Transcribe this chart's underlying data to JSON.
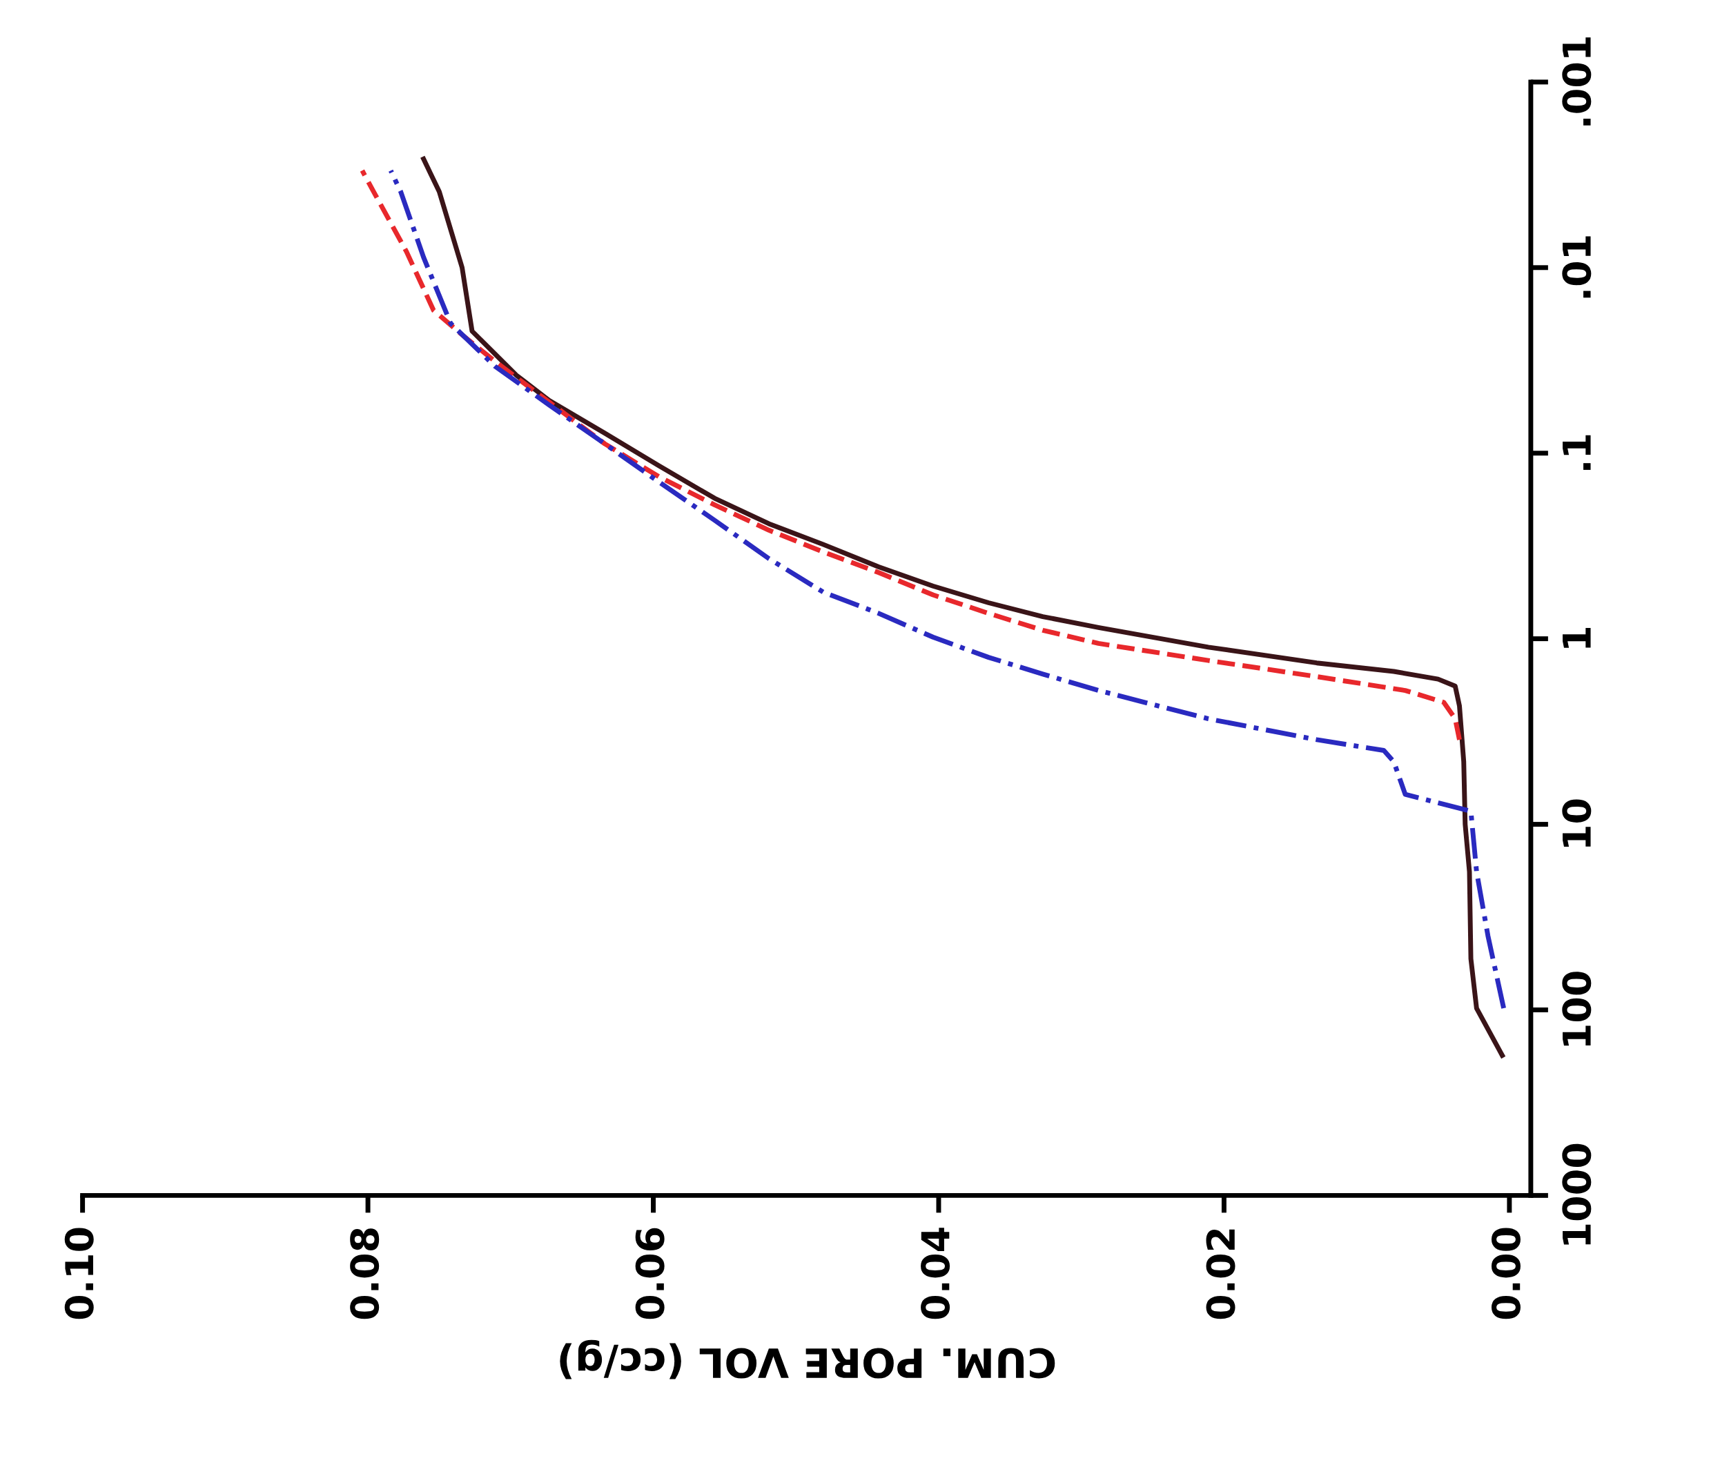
{
  "chart_data": {
    "type": "line",
    "xlabel": "CUM. PORE VOL (cc/g)",
    "log": "y",
    "grid": false,
    "legend": false,
    "marker": "none",
    "xlim": [
      0.1,
      -0.0015
    ],
    "xticks": [
      {
        "value": 0.1,
        "label": "0.10"
      },
      {
        "value": 0.08,
        "label": "0.08"
      },
      {
        "value": 0.06,
        "label": "0.06"
      },
      {
        "value": 0.04,
        "label": "0.04"
      },
      {
        "value": 0.02,
        "label": "0.02"
      },
      {
        "value": 0.0,
        "label": "0.00"
      }
    ],
    "ylim": [
      1000,
      0.001
    ],
    "yticks": [
      1000,
      100,
      10,
      1,
      {
        "value": 0.1,
        "label": ".1"
      },
      {
        "value": 0.01,
        "label": ".01"
      },
      {
        "value": 0.001,
        "label": ".001"
      }
    ],
    "series": [
      {
        "color": "#3a1418",
        "line_style": "solid",
        "x": [
          0.0005,
          0.0023,
          0.0027,
          0.0028,
          0.0031,
          0.0032,
          0.0035,
          0.0038,
          0.005,
          0.0081,
          0.0135,
          0.0211,
          0.0288,
          0.0327,
          0.0365,
          0.0404,
          0.0442,
          0.0481,
          0.0519,
          0.0557,
          0.0596,
          0.0634,
          0.0673,
          0.0696,
          0.0727,
          0.0734,
          0.075,
          0.0761
        ],
        "values": [
          176,
          98,
          53,
          18,
          10,
          4.6,
          2.3,
          1.8,
          1.65,
          1.5,
          1.35,
          1.11,
          0.87,
          0.76,
          0.64,
          0.52,
          0.41,
          0.31,
          0.24,
          0.175,
          0.117,
          0.078,
          0.052,
          0.038,
          0.022,
          0.01,
          0.0039,
          0.0026
        ]
      },
      {
        "color": "#e8282c",
        "line_style": "dashed",
        "x": [
          0.0035,
          0.0038,
          0.0046,
          0.0073,
          0.0135,
          0.0211,
          0.0288,
          0.0327,
          0.0365,
          0.0404,
          0.0442,
          0.0481,
          0.0519,
          0.0557,
          0.0596,
          0.0634,
          0.0673,
          0.0711,
          0.0734,
          0.0754,
          0.0773,
          0.0796,
          0.0804
        ],
        "values": [
          3.5,
          2.7,
          2.2,
          1.9,
          1.6,
          1.31,
          1.06,
          0.9,
          0.73,
          0.58,
          0.44,
          0.34,
          0.26,
          0.19,
          0.134,
          0.089,
          0.053,
          0.032,
          0.023,
          0.017,
          0.0082,
          0.0039,
          0.003
        ]
      },
      {
        "color": "#2a2ac0",
        "line_style": "dashdot",
        "x": [
          0.0004,
          0.0015,
          0.0023,
          0.0027,
          0.0073,
          0.0081,
          0.0088,
          0.0135,
          0.0211,
          0.0288,
          0.0327,
          0.0365,
          0.0404,
          0.0442,
          0.0481,
          0.0519,
          0.0557,
          0.0596,
          0.0634,
          0.0673,
          0.0711,
          0.0742,
          0.0761,
          0.0777,
          0.0784
        ],
        "values": [
          98,
          40,
          18,
          8.5,
          6.9,
          4.6,
          4.0,
          3.5,
          2.7,
          1.9,
          1.55,
          1.26,
          0.98,
          0.73,
          0.56,
          0.37,
          0.23,
          0.143,
          0.089,
          0.055,
          0.034,
          0.02,
          0.0088,
          0.0039,
          0.003
        ]
      }
    ]
  }
}
